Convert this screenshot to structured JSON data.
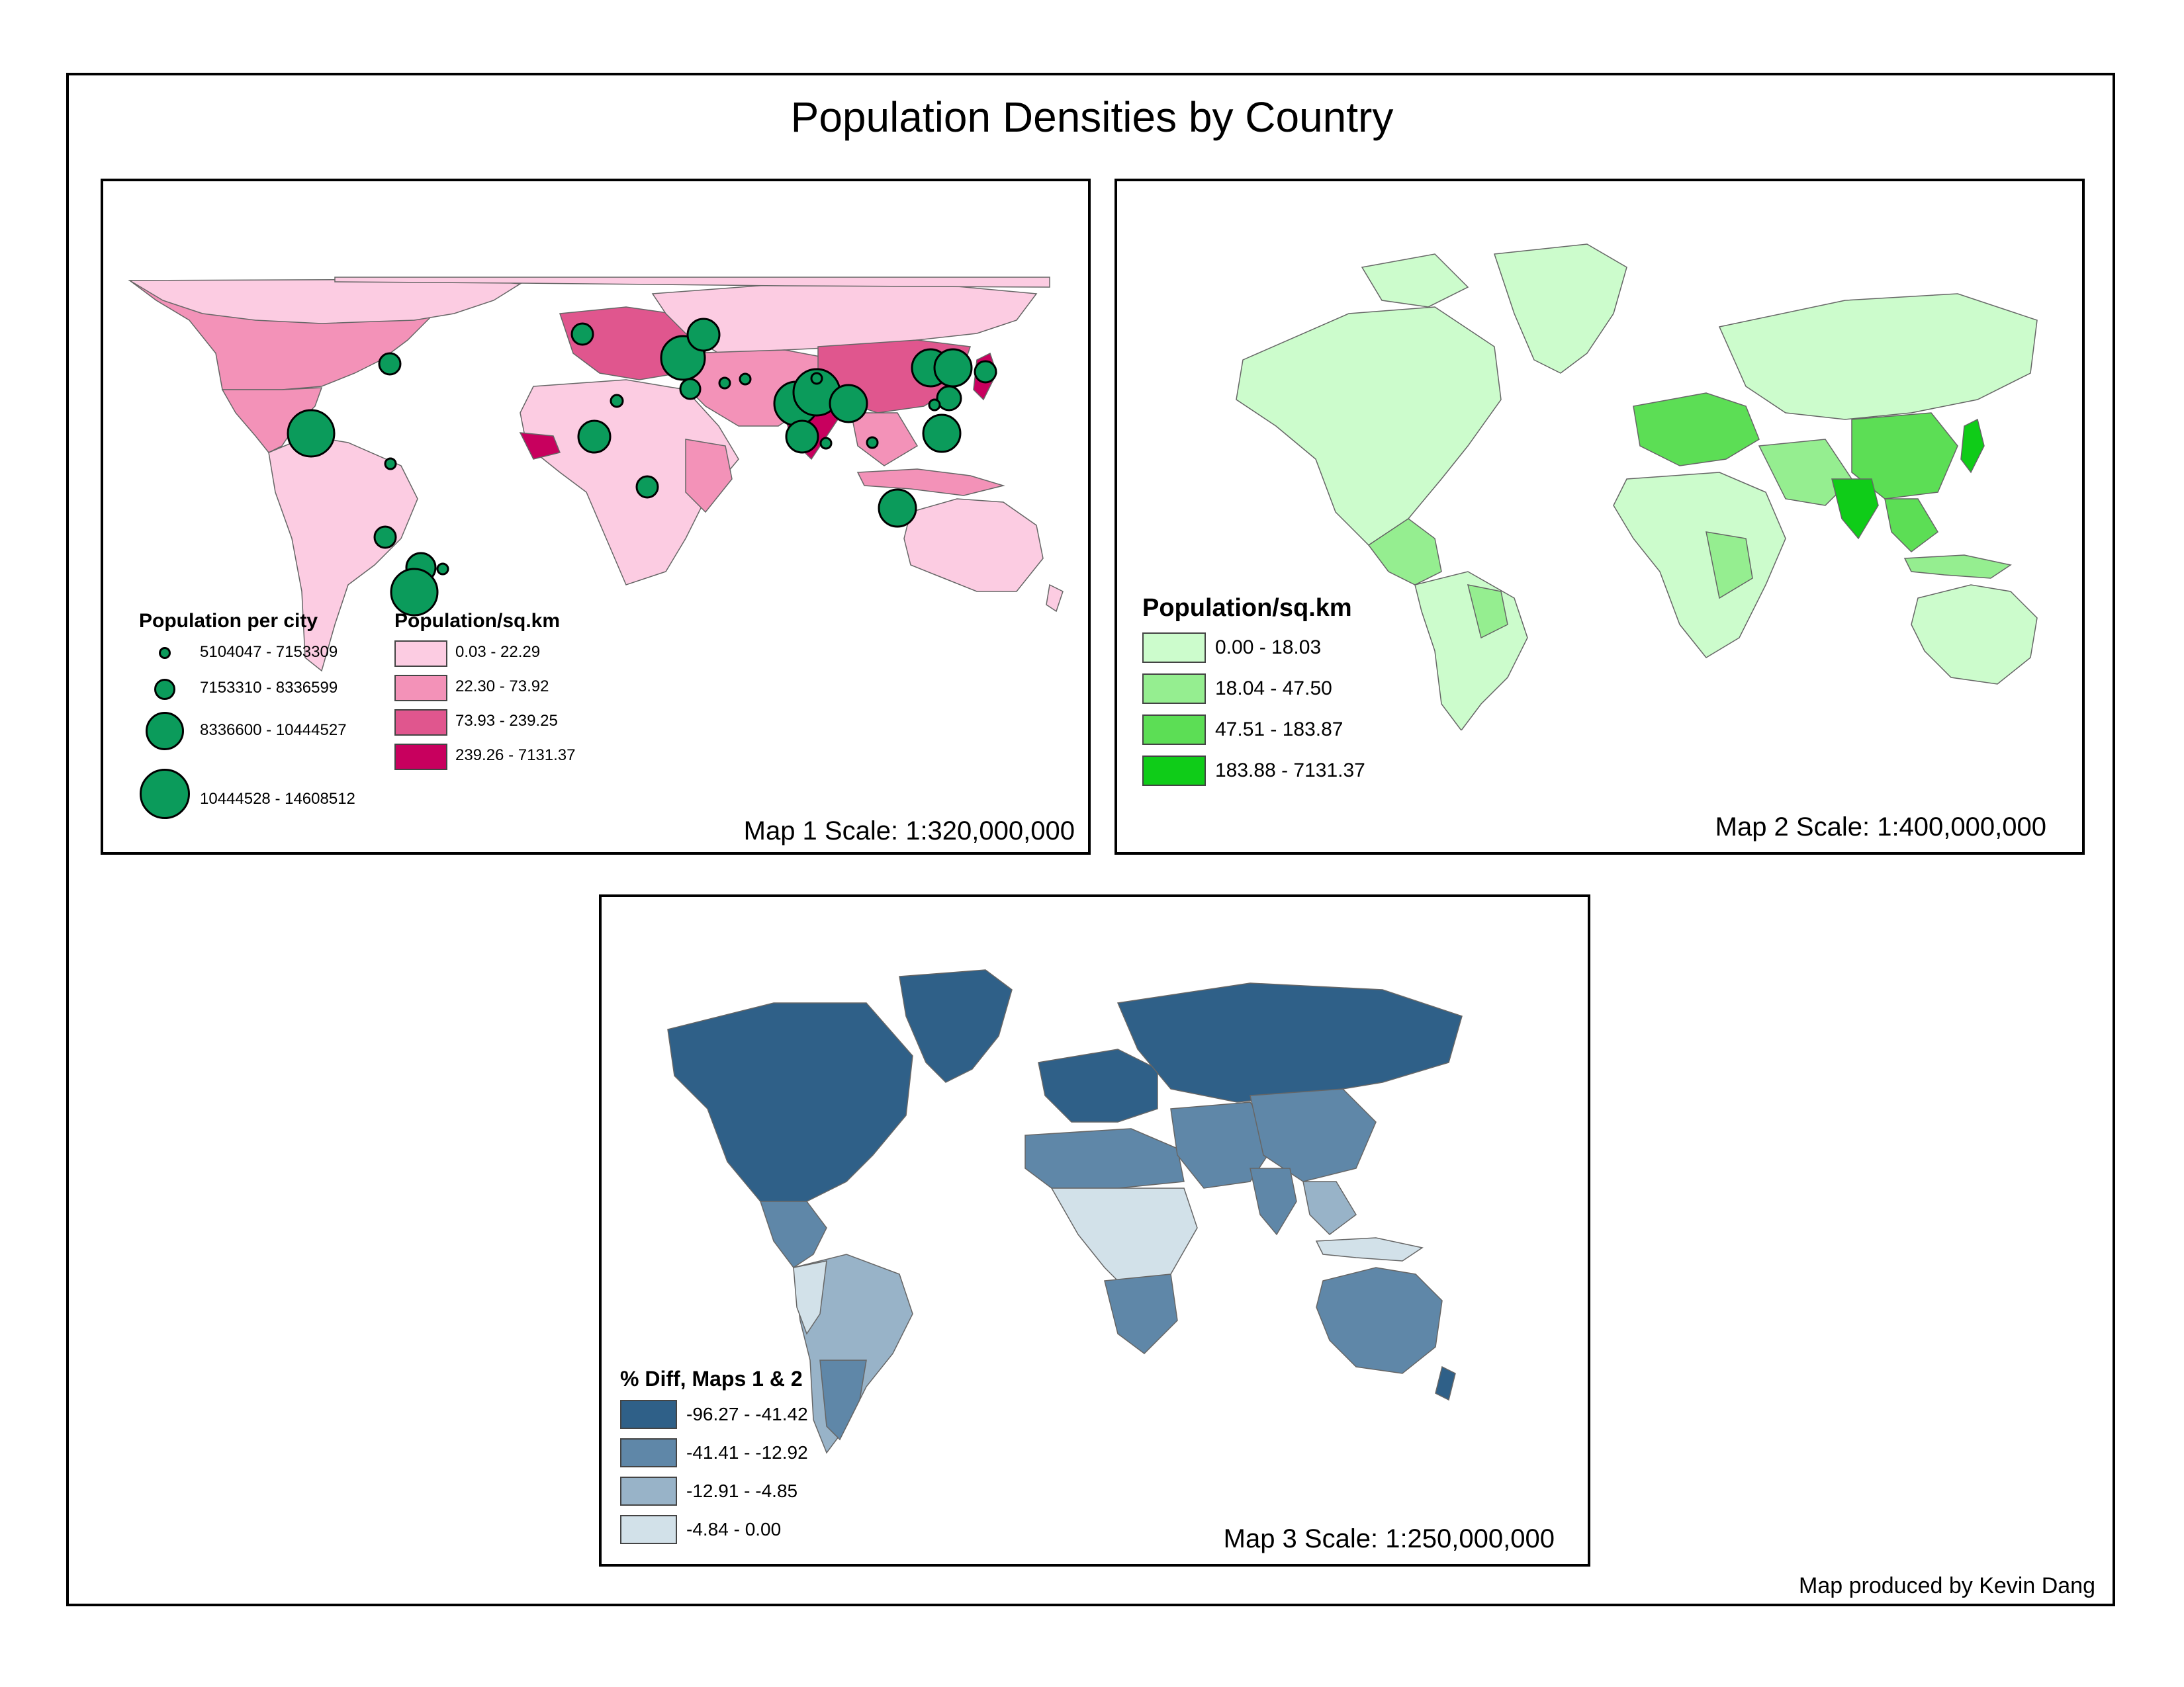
{
  "title": "Population Densities by Country",
  "credit": "Map produced by Kevin Dang",
  "map1": {
    "scale_text": "Map 1 Scale: 1:320,000,000",
    "legend_city": {
      "title": "Population per city",
      "items": [
        {
          "label": "5104047 - 7153309"
        },
        {
          "label": "7153310 - 8336599"
        },
        {
          "label": "8336600 - 10444527"
        },
        {
          "label": "10444528 - 14608512"
        }
      ]
    },
    "legend_density": {
      "title": "Population/sq.km",
      "items": [
        {
          "label": "0.03 - 22.29",
          "color": "#fccce2"
        },
        {
          "label": "22.30 - 73.92",
          "color": "#f392b8"
        },
        {
          "label": "73.93 - 239.25",
          "color": "#e0568e"
        },
        {
          "label": "239.26 - 7131.37",
          "color": "#c8005e"
        }
      ]
    },
    "city_color": "#0b9b5b"
  },
  "map2": {
    "scale_text": "Map 2 Scale: 1:400,000,000",
    "legend": {
      "title": "Population/sq.km",
      "items": [
        {
          "label": "0.00 - 18.03",
          "color": "#ccfccc"
        },
        {
          "label": "18.04 - 47.50",
          "color": "#95ee90"
        },
        {
          "label": "47.51 - 183.87",
          "color": "#5cde55"
        },
        {
          "label": "183.88 - 7131.37",
          "color": "#0fcc18"
        }
      ]
    }
  },
  "map3": {
    "scale_text": "Map 3 Scale: 1:250,000,000",
    "legend": {
      "title": "% Diff, Maps 1 & 2",
      "items": [
        {
          "label": "-96.27 - -41.42",
          "color": "#2f6088"
        },
        {
          "label": "-41.41 - -12.92",
          "color": "#5f87a8"
        },
        {
          "label": "-12.91 - -4.85",
          "color": "#98b3c8"
        },
        {
          "label": "-4.84 - 0.00",
          "color": "#d2e1e9"
        }
      ]
    }
  }
}
